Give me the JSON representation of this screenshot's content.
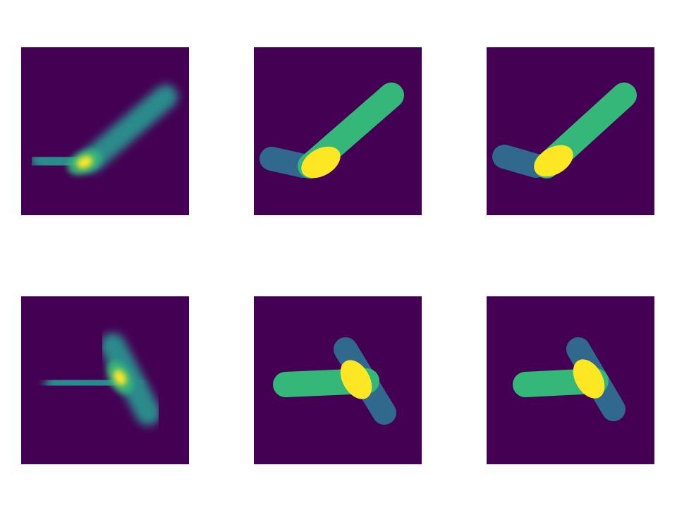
{
  "colors": {
    "background": "#440154",
    "low": "#31688e",
    "mid": "#35b779",
    "high": "#fde725",
    "signal": "#2a8a8c"
  }
}
